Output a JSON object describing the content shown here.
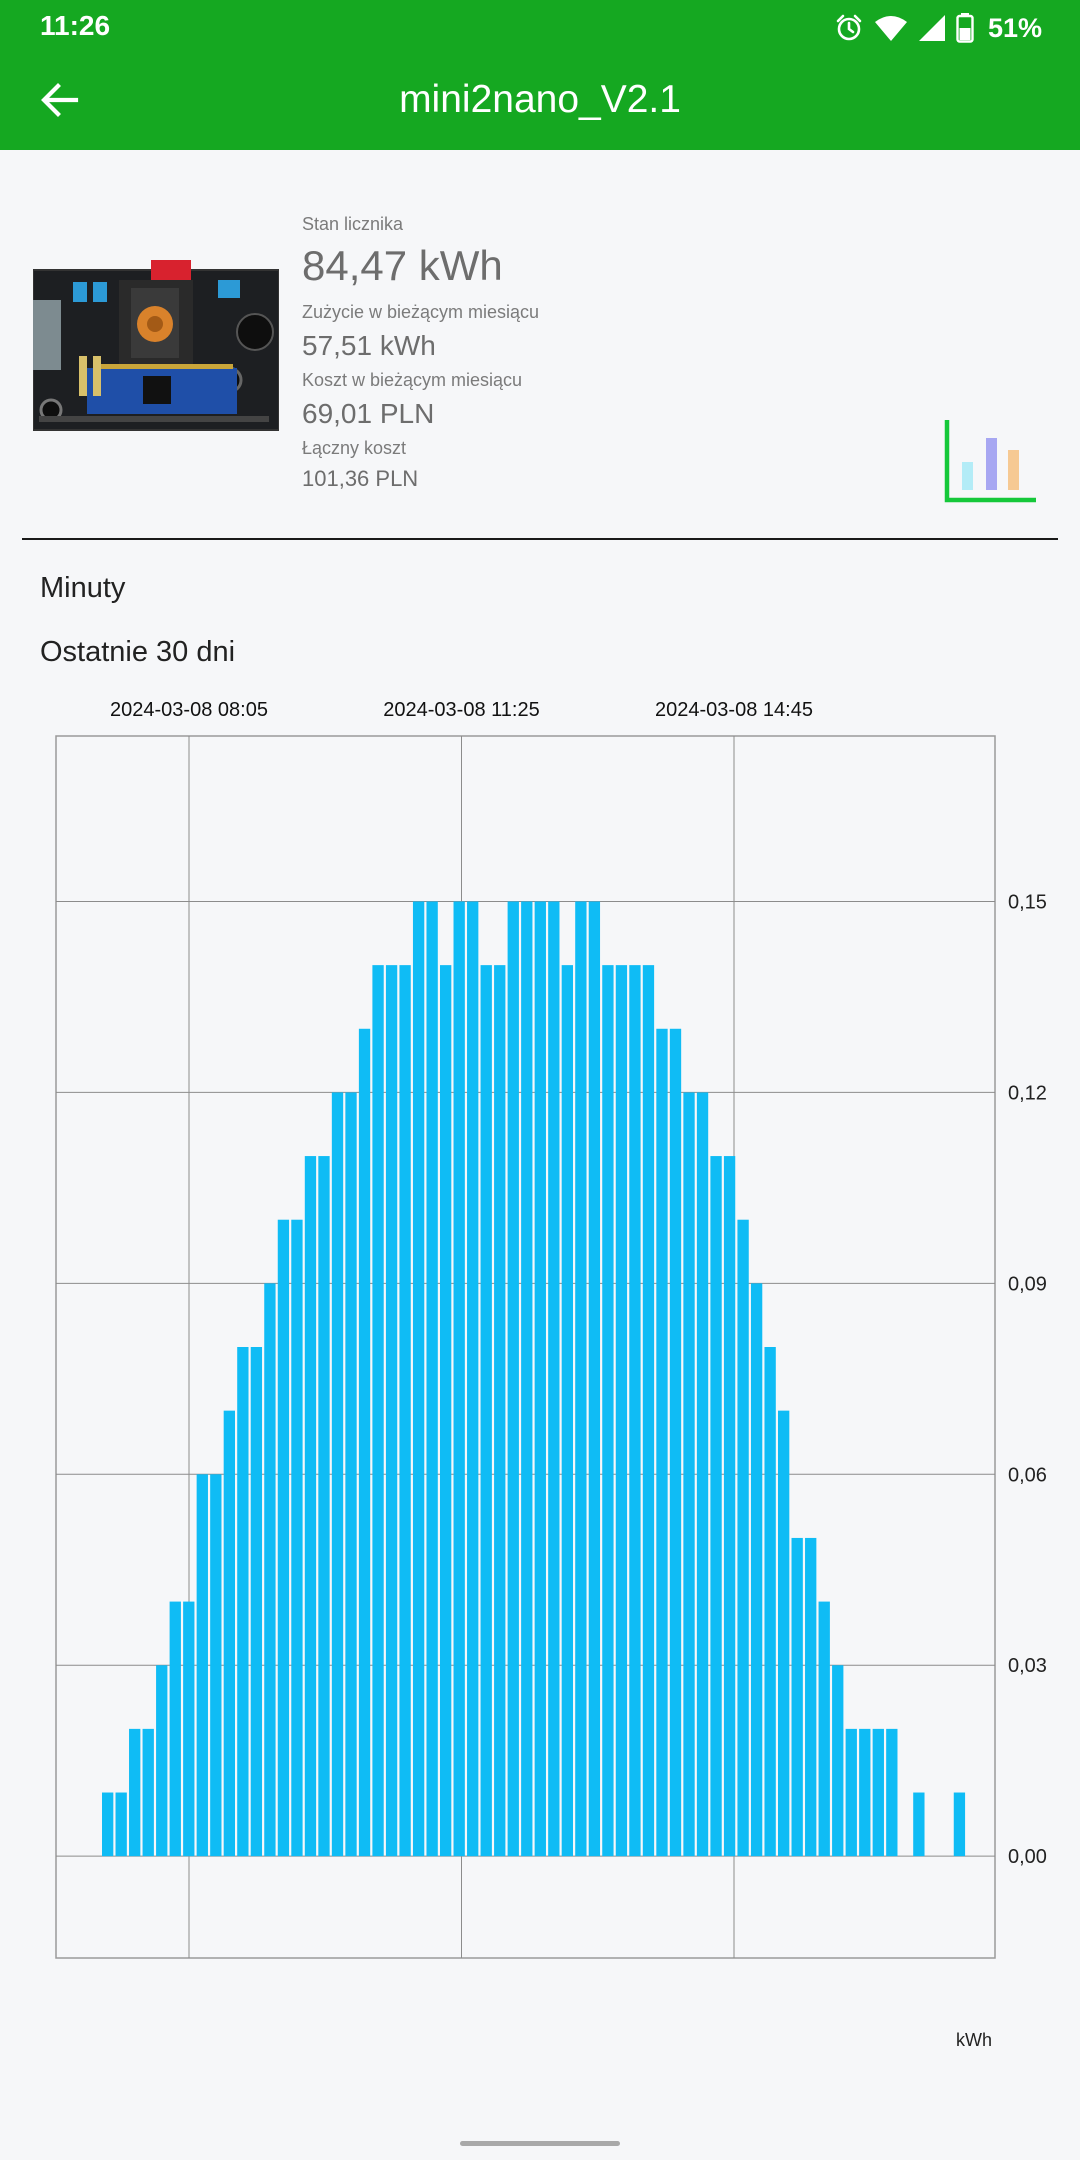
{
  "status_bar": {
    "time": "11:26",
    "battery": "51%"
  },
  "app_bar": {
    "title": "mini2nano_V2.1"
  },
  "summary": {
    "meter_label": "Stan licznika",
    "meter_value": "84,47 kWh",
    "month_usage_label": "Zużycie w bieżącym miesiącu",
    "month_usage_value": "57,51 kWh",
    "month_cost_label": "Koszt w bieżącym miesiącu",
    "month_cost_value": "69,01 PLN",
    "total_cost_label": "Łączny koszt",
    "total_cost_value": "101,36 PLN"
  },
  "interval_label": "Minuty",
  "range_label": "Ostatnie 30 dni",
  "colors": {
    "accent": "#15a821",
    "bar": "#0fbcf5"
  },
  "chart_data": {
    "type": "bar",
    "x_labels": [
      "2024-03-08 08:05",
      "2024-03-08 11:25",
      "2024-03-08 14:45"
    ],
    "y_ticks": [
      "0,00",
      "0,03",
      "0,06",
      "0,09",
      "0,12",
      "0,15"
    ],
    "ylabel": "kWh",
    "ylim": [
      -0.016,
      0.176
    ],
    "grid": true,
    "values": [
      0.01,
      0.01,
      0.02,
      0.02,
      0.03,
      0.04,
      0.04,
      0.06,
      0.06,
      0.07,
      0.08,
      0.08,
      0.09,
      0.1,
      0.1,
      0.11,
      0.11,
      0.12,
      0.12,
      0.13,
      0.14,
      0.14,
      0.14,
      0.15,
      0.15,
      0.14,
      0.15,
      0.15,
      0.14,
      0.14,
      0.15,
      0.15,
      0.15,
      0.15,
      0.14,
      0.15,
      0.15,
      0.14,
      0.14,
      0.14,
      0.14,
      0.13,
      0.13,
      0.12,
      0.12,
      0.11,
      0.11,
      0.1,
      0.09,
      0.08,
      0.07,
      0.05,
      0.05,
      0.04,
      0.03,
      0.02,
      0.02,
      0.02,
      0.02,
      0,
      0.01,
      0,
      0,
      0.01
    ]
  }
}
